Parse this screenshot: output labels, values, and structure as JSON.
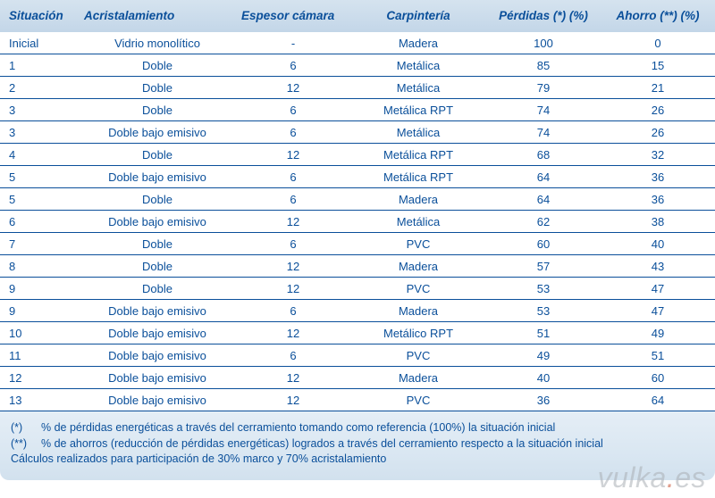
{
  "colors": {
    "header_bg_top": "#d5e3ef",
    "header_bg_bottom": "#c3d6e8",
    "text": "#0a4f9a",
    "row_border": "#0a4f9a",
    "footnote_bg_top": "#e5eef6",
    "footnote_bg_bottom": "#d2e1ee",
    "watermark": "rgba(170,175,180,0.55)",
    "watermark_dot": "rgba(200,80,50,0.55)"
  },
  "typography": {
    "font_family": "Segoe UI, Lucida Sans, Arial, sans-serif",
    "header_fontsize": 13.5,
    "header_style": "bold italic",
    "cell_fontsize": 13,
    "footnote_fontsize": 12.5
  },
  "table": {
    "type": "table",
    "columns": [
      {
        "key": "situacion",
        "label": "Situación",
        "align": "left"
      },
      {
        "key": "acristalamiento",
        "label": "Acristalamiento",
        "align": "center"
      },
      {
        "key": "espesor",
        "label": "Espesor cámara",
        "align": "center"
      },
      {
        "key": "carpinteria",
        "label": "Carpintería",
        "align": "center"
      },
      {
        "key": "perdidas",
        "label": "Pérdidas (*) (%)",
        "align": "center"
      },
      {
        "key": "ahorro",
        "label": "Ahorro (**) (%)",
        "align": "center"
      }
    ],
    "rows": [
      [
        "Inicial",
        "Vidrio monolítico",
        "-",
        "Madera",
        "100",
        "0"
      ],
      [
        "1",
        "Doble",
        "6",
        "Metálica",
        "85",
        "15"
      ],
      [
        "2",
        "Doble",
        "12",
        "Metálica",
        "79",
        "21"
      ],
      [
        "3",
        "Doble",
        "6",
        "Metálica RPT",
        "74",
        "26"
      ],
      [
        "3",
        "Doble bajo emisivo",
        "6",
        "Metálica",
        "74",
        "26"
      ],
      [
        "4",
        "Doble",
        "12",
        "Metálica RPT",
        "68",
        "32"
      ],
      [
        "5",
        "Doble bajo emisivo",
        "6",
        "Metálica RPT",
        "64",
        "36"
      ],
      [
        "5",
        "Doble",
        "6",
        "Madera",
        "64",
        "36"
      ],
      [
        "6",
        "Doble  bajo emisivo",
        "12",
        "Metálica",
        "62",
        "38"
      ],
      [
        "7",
        "Doble",
        "6",
        "PVC",
        "60",
        "40"
      ],
      [
        "8",
        "Doble",
        "12",
        "Madera",
        "57",
        "43"
      ],
      [
        "9",
        "Doble",
        "12",
        "PVC",
        "53",
        "47"
      ],
      [
        "9",
        "Doble bajo emisivo",
        "6",
        "Madera",
        "53",
        "47"
      ],
      [
        "10",
        "Doble bajo emisivo",
        "12",
        "Metálico RPT",
        "51",
        "49"
      ],
      [
        "11",
        "Doble bajo emisivo",
        "6",
        "PVC",
        "49",
        "51"
      ],
      [
        "12",
        "Doble bajo emisivo",
        "12",
        "Madera",
        "40",
        "60"
      ],
      [
        "13",
        "Doble bajo emisivo",
        "12",
        "PVC",
        "36",
        "64"
      ]
    ]
  },
  "footnotes": {
    "f1_mark": "(*)",
    "f1_text": "% de pérdidas energéticas a través del cerramiento tomando como referencia (100%) la situación inicial",
    "f2_mark": "(**)",
    "f2_text": "% de ahorros (reducción de pérdidas energéticas) logrados a través del cerramiento respecto a la situación inicial",
    "f3_text": "Cálculos realizados para participación de 30% marco y 70% acristalamiento"
  },
  "watermark": {
    "left": "vulka",
    "dot": ".",
    "right": "es"
  }
}
